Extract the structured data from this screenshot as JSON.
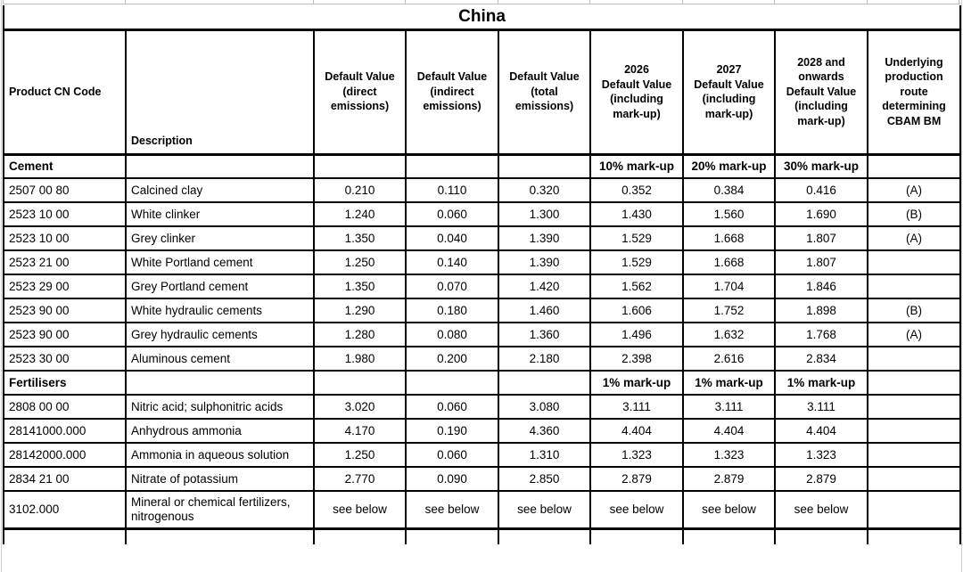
{
  "sheet": {
    "title": "China",
    "columns": [
      {
        "id": "cn_code",
        "label": "Product CN Code"
      },
      {
        "id": "description",
        "label": "Description"
      },
      {
        "id": "dv_direct",
        "label": "Default Value\n(direct\nemissions)"
      },
      {
        "id": "dv_indirect",
        "label": "Default Value\n(indirect\nemissions)"
      },
      {
        "id": "dv_total",
        "label": "Default Value\n(total\nemissions)"
      },
      {
        "id": "dv_2026",
        "label": "2026\nDefault Value\n(including\nmark-up)"
      },
      {
        "id": "dv_2027",
        "label": "2027\nDefault Value\n(including\nmark-up)"
      },
      {
        "id": "dv_2028",
        "label": "2028 and\nonwards\nDefault Value\n(including\nmark-up)"
      },
      {
        "id": "route",
        "label": "Underlying\nproduction\nroute\ndetermining\nCBAM BM"
      }
    ],
    "rows": [
      {
        "type": "section",
        "cells": [
          "Cement",
          "",
          "",
          "",
          "",
          "10% mark-up",
          "20% mark-up",
          "30% mark-up",
          ""
        ]
      },
      {
        "type": "data",
        "cells": [
          "2507 00 80",
          "Calcined clay",
          "0.210",
          "0.110",
          "0.320",
          "0.352",
          "0.384",
          "0.416",
          "(A)"
        ]
      },
      {
        "type": "data",
        "cells": [
          "2523 10 00",
          "White clinker",
          "1.240",
          "0.060",
          "1.300",
          "1.430",
          "1.560",
          "1.690",
          "(B)"
        ]
      },
      {
        "type": "data",
        "cells": [
          "2523 10 00",
          "Grey clinker",
          "1.350",
          "0.040",
          "1.390",
          "1.529",
          "1.668",
          "1.807",
          "(A)"
        ]
      },
      {
        "type": "data",
        "cells": [
          "2523 21 00",
          "White Portland cement",
          "1.250",
          "0.140",
          "1.390",
          "1.529",
          "1.668",
          "1.807",
          ""
        ]
      },
      {
        "type": "data",
        "cells": [
          "2523 29 00",
          "Grey Portland cement",
          "1.350",
          "0.070",
          "1.420",
          "1.562",
          "1.704",
          "1.846",
          ""
        ]
      },
      {
        "type": "data",
        "cells": [
          "2523 90 00",
          "White hydraulic cements",
          "1.290",
          "0.180",
          "1.460",
          "1.606",
          "1.752",
          "1.898",
          "(B)"
        ]
      },
      {
        "type": "data",
        "cells": [
          "2523 90 00",
          "Grey hydraulic cements",
          "1.280",
          "0.080",
          "1.360",
          "1.496",
          "1.632",
          "1.768",
          "(A)"
        ]
      },
      {
        "type": "data",
        "cells": [
          "2523 30 00",
          "Aluminous cement",
          "1.980",
          "0.200",
          "2.180",
          "2.398",
          "2.616",
          "2.834",
          ""
        ]
      },
      {
        "type": "section",
        "cells": [
          "Fertilisers",
          "",
          "",
          "",
          "",
          "1% mark-up",
          "1% mark-up",
          "1% mark-up",
          ""
        ]
      },
      {
        "type": "data",
        "cells": [
          "2808 00 00",
          "Nitric acid; sulphonitric acids",
          "3.020",
          "0.060",
          "3.080",
          "3.111",
          "3.111",
          "3.111",
          ""
        ]
      },
      {
        "type": "data",
        "cells": [
          "28141000.000",
          "Anhydrous ammonia",
          "4.170",
          "0.190",
          "4.360",
          "4.404",
          "4.404",
          "4.404",
          ""
        ]
      },
      {
        "type": "data",
        "cells": [
          "28142000.000",
          "Ammonia in aqueous solution",
          "1.250",
          "0.060",
          "1.310",
          "1.323",
          "1.323",
          "1.323",
          ""
        ]
      },
      {
        "type": "data",
        "cells": [
          "2834 21 00",
          "Nitrate of potassium",
          "2.770",
          "0.090",
          "2.850",
          "2.879",
          "2.879",
          "2.879",
          ""
        ]
      },
      {
        "type": "data-tall",
        "cells": [
          "3102.000",
          "Mineral or chemical fertilizers,\nnitrogenous",
          "see below",
          "see below",
          "see below",
          "see below",
          "see below",
          "see below",
          ""
        ]
      },
      {
        "type": "empty",
        "cells": [
          "",
          "",
          "",
          "",
          "",
          "",
          "",
          "",
          ""
        ]
      }
    ]
  },
  "colors": {
    "border": "#000000",
    "gridline": "#bdbdbd",
    "background": "#ffffff",
    "text": "#000000"
  }
}
